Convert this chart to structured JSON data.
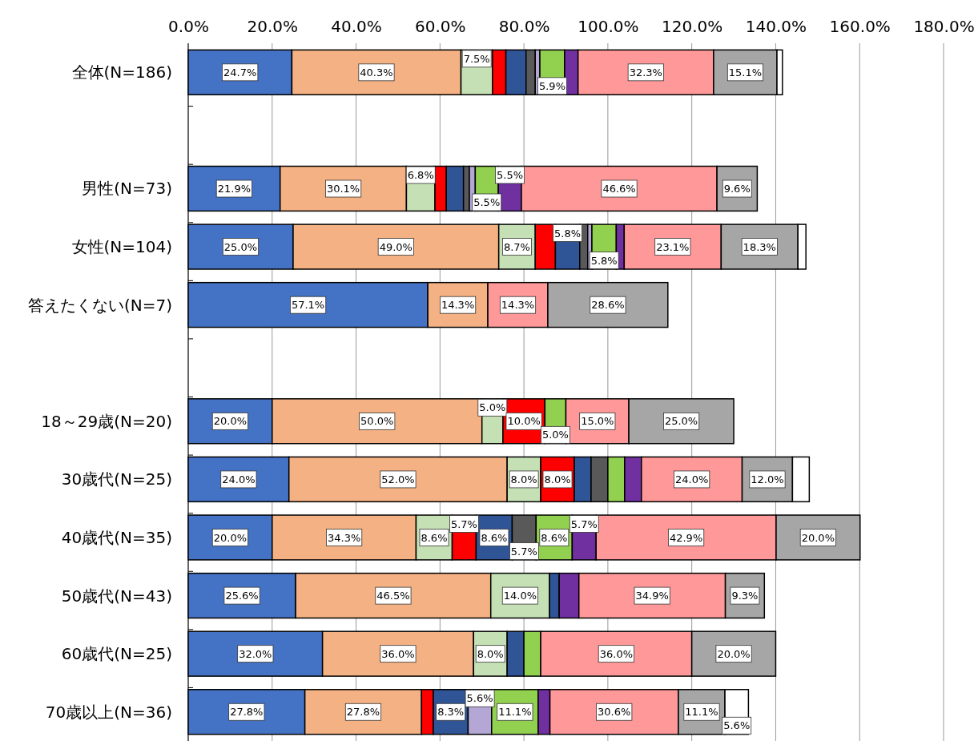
{
  "chart_data": {
    "type": "bar",
    "orientation": "horizontal",
    "stacked": true,
    "grid": "x",
    "categories": [
      "全体(N=186)",
      null,
      "男性(N=73)",
      "女性(N=104)",
      "答えたくない(N=7)",
      null,
      "18～29歳(N=20)",
      "30歳代(N=25)",
      "40歳代(N=35)",
      "50歳代(N=43)",
      "60歳代(N=25)",
      "70歳以上(N=36)"
    ],
    "xlim": [
      0,
      180
    ],
    "xticks": [
      {
        "value": 0,
        "label": "0.0%"
      },
      {
        "value": 20,
        "label": "20.0%"
      },
      {
        "value": 40,
        "label": "40.0%"
      },
      {
        "value": 60,
        "label": "60.0%"
      },
      {
        "value": 80,
        "label": "80.0%"
      },
      {
        "value": 100,
        "label": "100.0%"
      },
      {
        "value": 120,
        "label": "120.0%"
      },
      {
        "value": 140,
        "label": "140.0%"
      },
      {
        "value": 160,
        "label": "160.0%"
      },
      {
        "value": 180,
        "label": "180.0%"
      }
    ],
    "series": [
      {
        "color": "#4472c4",
        "values": [
          24.7,
          null,
          21.9,
          25.0,
          57.1,
          null,
          20.0,
          24.0,
          20.0,
          25.6,
          32.0,
          27.8
        ],
        "value_labels": [
          "24.7%",
          null,
          "21.9%",
          "25.0%",
          "57.1%",
          null,
          "20.0%",
          "24.0%",
          "20.0%",
          "25.6%",
          "32.0%",
          "27.8%"
        ]
      },
      {
        "color": "#f4b183",
        "values": [
          40.3,
          null,
          30.1,
          49.0,
          14.3,
          null,
          50.0,
          52.0,
          34.3,
          46.5,
          36.0,
          27.8
        ],
        "value_labels": [
          "40.3%",
          null,
          "30.1%",
          "49.0%",
          "14.3%",
          null,
          "50.0%",
          "52.0%",
          "34.3%",
          "46.5%",
          "36.0%",
          "27.8%"
        ]
      },
      {
        "color": "#c5e0b4",
        "values": [
          7.5,
          null,
          6.8,
          8.7,
          0,
          null,
          5.0,
          8.0,
          8.6,
          14.0,
          8.0,
          0
        ],
        "value_labels": [
          "7.5%",
          null,
          "6.8%",
          "8.7%",
          null,
          null,
          "5.0%",
          "8.0%",
          "8.6%",
          "14.0%",
          "8.0%",
          null
        ]
      },
      {
        "color": "#ff0000",
        "values": [
          3.2,
          null,
          2.7,
          4.8,
          0,
          null,
          10.0,
          8.0,
          5.7,
          0,
          0,
          2.8
        ],
        "value_labels": [
          null,
          null,
          null,
          null,
          null,
          null,
          "10.0%",
          "8.0%",
          "5.7%",
          null,
          null,
          null
        ]
      },
      {
        "color": "#2f5597",
        "values": [
          4.8,
          null,
          4.1,
          5.8,
          0,
          null,
          0,
          4.0,
          8.6,
          2.3,
          4.0,
          8.3
        ],
        "value_labels": [
          null,
          null,
          null,
          "5.8%",
          null,
          null,
          null,
          null,
          "8.6%",
          null,
          null,
          "8.3%"
        ]
      },
      {
        "color": "#595959",
        "values": [
          2.2,
          null,
          1.4,
          1.9,
          0,
          null,
          0,
          4.0,
          5.7,
          0,
          0,
          0
        ],
        "value_labels": [
          null,
          null,
          null,
          null,
          null,
          null,
          null,
          null,
          "5.7%",
          null,
          null,
          null
        ]
      },
      {
        "color": "#b4a7d6",
        "values": [
          1.1,
          null,
          1.4,
          1.0,
          0,
          null,
          0,
          0,
          0,
          0,
          0,
          5.6
        ],
        "value_labels": [
          null,
          null,
          null,
          null,
          null,
          null,
          null,
          null,
          null,
          null,
          null,
          "5.6%"
        ]
      },
      {
        "color": "#92d050",
        "values": [
          5.9,
          null,
          5.5,
          5.8,
          0,
          null,
          5.0,
          4.0,
          8.6,
          0,
          4.0,
          11.1
        ],
        "value_labels": [
          "5.9%",
          null,
          "5.5%",
          "5.8%",
          null,
          null,
          "5.0%",
          null,
          "8.6%",
          null,
          null,
          "11.1%"
        ]
      },
      {
        "color": "#7030a0",
        "values": [
          3.2,
          null,
          5.5,
          1.9,
          0,
          null,
          0,
          4.0,
          5.7,
          4.7,
          0,
          2.8
        ],
        "value_labels": [
          null,
          null,
          "5.5%",
          null,
          null,
          null,
          null,
          null,
          "5.7%",
          null,
          null,
          null
        ]
      },
      {
        "color": "#ff9999",
        "values": [
          32.3,
          null,
          46.6,
          23.1,
          14.3,
          null,
          15.0,
          24.0,
          42.9,
          34.9,
          36.0,
          30.6
        ],
        "value_labels": [
          "32.3%",
          null,
          "46.6%",
          "23.1%",
          "14.3%",
          null,
          "15.0%",
          "24.0%",
          "42.9%",
          "34.9%",
          "36.0%",
          "30.6%"
        ]
      },
      {
        "color": "#a6a6a6",
        "values": [
          15.1,
          null,
          9.6,
          18.3,
          28.6,
          null,
          25.0,
          12.0,
          20.0,
          9.3,
          20.0,
          11.1
        ],
        "value_labels": [
          "15.1%",
          null,
          "9.6%",
          "18.3%",
          "28.6%",
          null,
          "25.0%",
          "12.0%",
          "20.0%",
          "9.3%",
          "20.0%",
          "11.1%"
        ]
      },
      {
        "color": "#ffffff",
        "values": [
          1.3,
          null,
          0,
          1.9,
          0,
          null,
          0,
          4.0,
          0,
          0,
          0,
          5.6
        ],
        "value_labels": [
          null,
          null,
          null,
          null,
          null,
          null,
          null,
          null,
          null,
          null,
          null,
          "5.6%"
        ]
      }
    ]
  }
}
